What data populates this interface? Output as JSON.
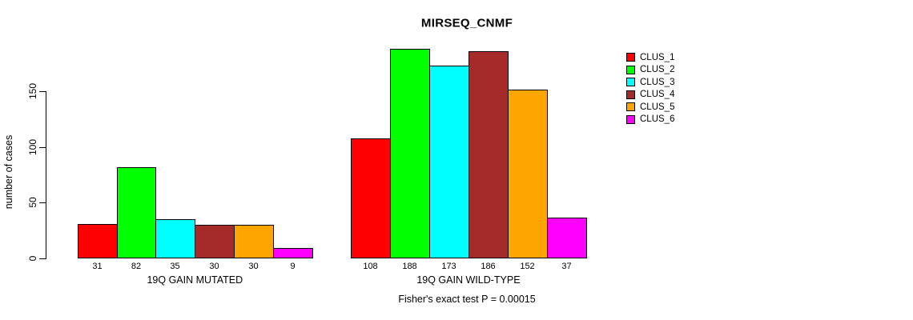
{
  "chart_data": {
    "type": "bar",
    "title": "MIRSEQ_CNMF",
    "ylabel": "number of cases",
    "ylim": [
      0,
      150
    ],
    "yticks": [
      0,
      50,
      100,
      150
    ],
    "grid": false,
    "legend_position": "right",
    "categories": [
      "19Q GAIN MUTATED",
      "19Q GAIN WILD-TYPE"
    ],
    "series": [
      {
        "name": "CLUS_1",
        "color": "#FF0000",
        "values": [
          31,
          108
        ]
      },
      {
        "name": "CLUS_2",
        "color": "#00FF00",
        "values": [
          82,
          188
        ]
      },
      {
        "name": "CLUS_3",
        "color": "#00FFFF",
        "values": [
          35,
          173
        ]
      },
      {
        "name": "CLUS_4",
        "color": "#A52A2A",
        "values": [
          30,
          186
        ]
      },
      {
        "name": "CLUS_5",
        "color": "#FFA500",
        "values": [
          30,
          152
        ]
      },
      {
        "name": "CLUS_6",
        "color": "#FF00FF",
        "values": [
          9,
          37
        ]
      }
    ],
    "bar_value_labels": [
      [
        31,
        82,
        35,
        30,
        30,
        9
      ],
      [
        108,
        188,
        173,
        186,
        152,
        37
      ]
    ],
    "annotation": "Fisher's exact test P = 0.00015"
  }
}
